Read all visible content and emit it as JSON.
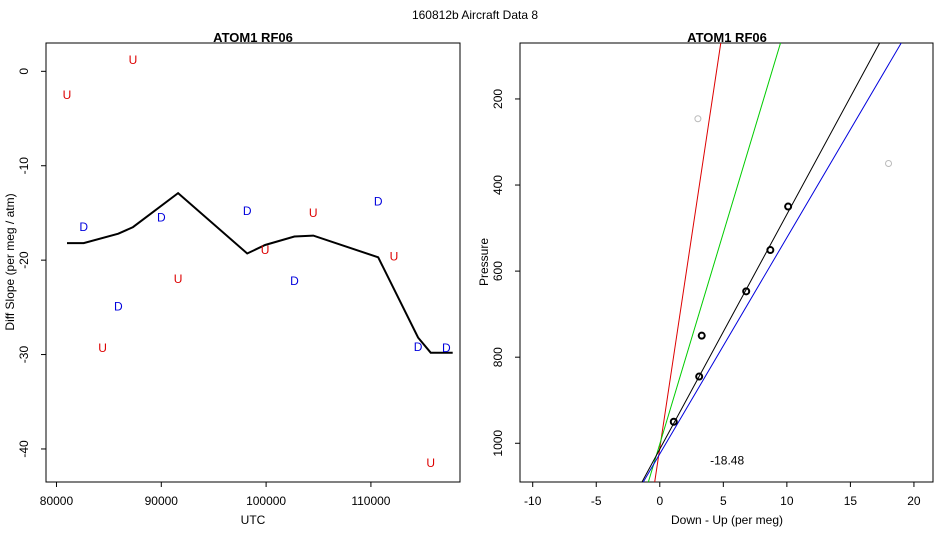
{
  "suptitle": "160812b   Aircraft Data 8",
  "colors": {
    "up": "#dd0000",
    "down": "#0000dd",
    "line": "#000000",
    "fit_red": "#dd0000",
    "fit_green": "#00cc00",
    "fit_black": "#000000",
    "fit_blue": "#0000dd",
    "excluded": "#bbbbbb"
  },
  "chart_data": [
    {
      "type": "scatter",
      "title": "ATOM1 RF06",
      "xlabel": "UTC",
      "ylabel": "Diff Slope (per meg / atm)",
      "xlim": [
        79000,
        118500
      ],
      "ylim": [
        -43.5,
        3
      ],
      "xticks": [
        80000,
        90000,
        100000,
        110000
      ],
      "yticks": [
        0,
        -10,
        -20,
        -30,
        -40
      ],
      "up_points": [
        {
          "x": 81000,
          "y": -2.5,
          "label": "U"
        },
        {
          "x": 87300,
          "y": 1.2,
          "label": "U"
        },
        {
          "x": 84400,
          "y": -29.3,
          "label": "U"
        },
        {
          "x": 91600,
          "y": -22.0,
          "label": "U"
        },
        {
          "x": 99900,
          "y": -18.9,
          "label": "U"
        },
        {
          "x": 104500,
          "y": -15.0,
          "label": "U"
        },
        {
          "x": 112200,
          "y": -19.6,
          "label": "U"
        },
        {
          "x": 115700,
          "y": -41.5,
          "label": "U"
        }
      ],
      "down_points": [
        {
          "x": 82600,
          "y": -16.5,
          "label": "D"
        },
        {
          "x": 85900,
          "y": -24.9,
          "label": "D"
        },
        {
          "x": 90000,
          "y": -15.5,
          "label": "D"
        },
        {
          "x": 98200,
          "y": -14.8,
          "label": "D"
        },
        {
          "x": 102700,
          "y": -22.2,
          "label": "D"
        },
        {
          "x": 110700,
          "y": -13.8,
          "label": "D"
        },
        {
          "x": 114500,
          "y": -29.2,
          "label": "D"
        },
        {
          "x": 117200,
          "y": -29.3,
          "label": "D"
        }
      ],
      "series": [
        {
          "name": "smoothed",
          "x": [
            81000,
            82600,
            85900,
            87300,
            91600,
            98200,
            99900,
            102700,
            104500,
            110700,
            114500,
            115700,
            117200,
            117800
          ],
          "y": [
            -18.2,
            -18.2,
            -17.2,
            -16.5,
            -12.9,
            -19.3,
            -18.4,
            -17.5,
            -17.4,
            -19.7,
            -28.2,
            -29.8,
            -29.8,
            -29.8
          ]
        }
      ]
    },
    {
      "type": "scatter",
      "title": "ATOM1 RF06",
      "xlabel": "Down - Up (per meg)",
      "ylabel": "Pressure",
      "xlim": [
        -11,
        21.5
      ],
      "ylim": [
        1090,
        70
      ],
      "xticks": [
        -10,
        -5,
        0,
        5,
        10,
        15,
        20
      ],
      "yticks": [
        200,
        400,
        600,
        800,
        1000
      ],
      "points": [
        {
          "x": 1.1,
          "y": 950
        },
        {
          "x": 3.1,
          "y": 845
        },
        {
          "x": 3.3,
          "y": 750
        },
        {
          "x": 6.8,
          "y": 647
        },
        {
          "x": 8.7,
          "y": 551
        },
        {
          "x": 10.1,
          "y": 450
        }
      ],
      "excluded_points": [
        {
          "x": 3.0,
          "y": 246
        },
        {
          "x": 18.0,
          "y": 350
        }
      ],
      "fit_lines": [
        {
          "name": "red",
          "x": [
            -0.4,
            4.8
          ],
          "y": [
            1090,
            70
          ]
        },
        {
          "name": "green",
          "x": [
            -0.9,
            9.5
          ],
          "y": [
            1090,
            70
          ]
        },
        {
          "name": "black",
          "x": [
            -1.4,
            17.3
          ],
          "y": [
            1090,
            70
          ]
        },
        {
          "name": "blue",
          "x": [
            -1.3,
            19.0
          ],
          "y": [
            1090,
            70
          ]
        }
      ],
      "annotation": {
        "text": "-18.48",
        "x": 5.3,
        "y": 1040
      }
    }
  ]
}
